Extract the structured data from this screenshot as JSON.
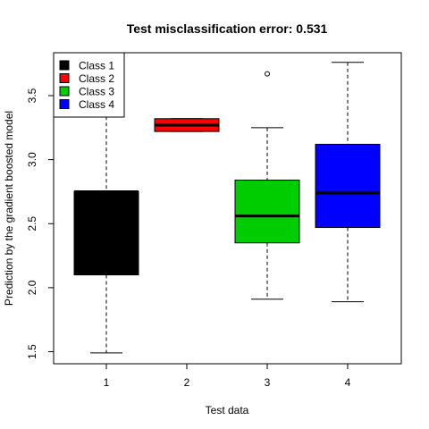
{
  "chart_data": {
    "type": "boxplot",
    "title": "Test misclassification error: 0.531",
    "xlabel": "Test data",
    "ylabel": "Prediction by the gradient boosted model",
    "categories": [
      "1",
      "2",
      "3",
      "4"
    ],
    "ylim": [
      1.45,
      3.9
    ],
    "yticks": [
      1.5,
      2.0,
      2.5,
      3.0,
      3.5
    ],
    "ytick_labels": [
      "1.5",
      "2.0",
      "2.5",
      "3.0",
      "3.5"
    ],
    "grid": false,
    "legend_position": "top-left",
    "boxes": [
      {
        "category": "1",
        "min": 1.49,
        "q1": 2.1,
        "median": 2.75,
        "q3": 2.75,
        "max": 3.68,
        "outliers": [],
        "color": "#000000"
      },
      {
        "category": "2",
        "min": 3.22,
        "q1": 3.22,
        "median": 3.27,
        "q3": 3.32,
        "max": 3.32,
        "outliers": [],
        "color": "#ff0000"
      },
      {
        "category": "3",
        "min": 1.91,
        "q1": 2.35,
        "median": 2.56,
        "q3": 2.84,
        "max": 3.25,
        "outliers": [
          3.67
        ],
        "color": "#00cd00"
      },
      {
        "category": "4",
        "min": 1.89,
        "q1": 2.47,
        "median": 2.74,
        "q3": 3.12,
        "max": 3.76,
        "outliers": [],
        "color": "#0000ff"
      }
    ],
    "legend": [
      {
        "label": "Class 1",
        "color": "#000000"
      },
      {
        "label": "Class 2",
        "color": "#ff0000"
      },
      {
        "label": "Class 3",
        "color": "#00cd00"
      },
      {
        "label": "Class 4",
        "color": "#0000ff"
      }
    ]
  }
}
